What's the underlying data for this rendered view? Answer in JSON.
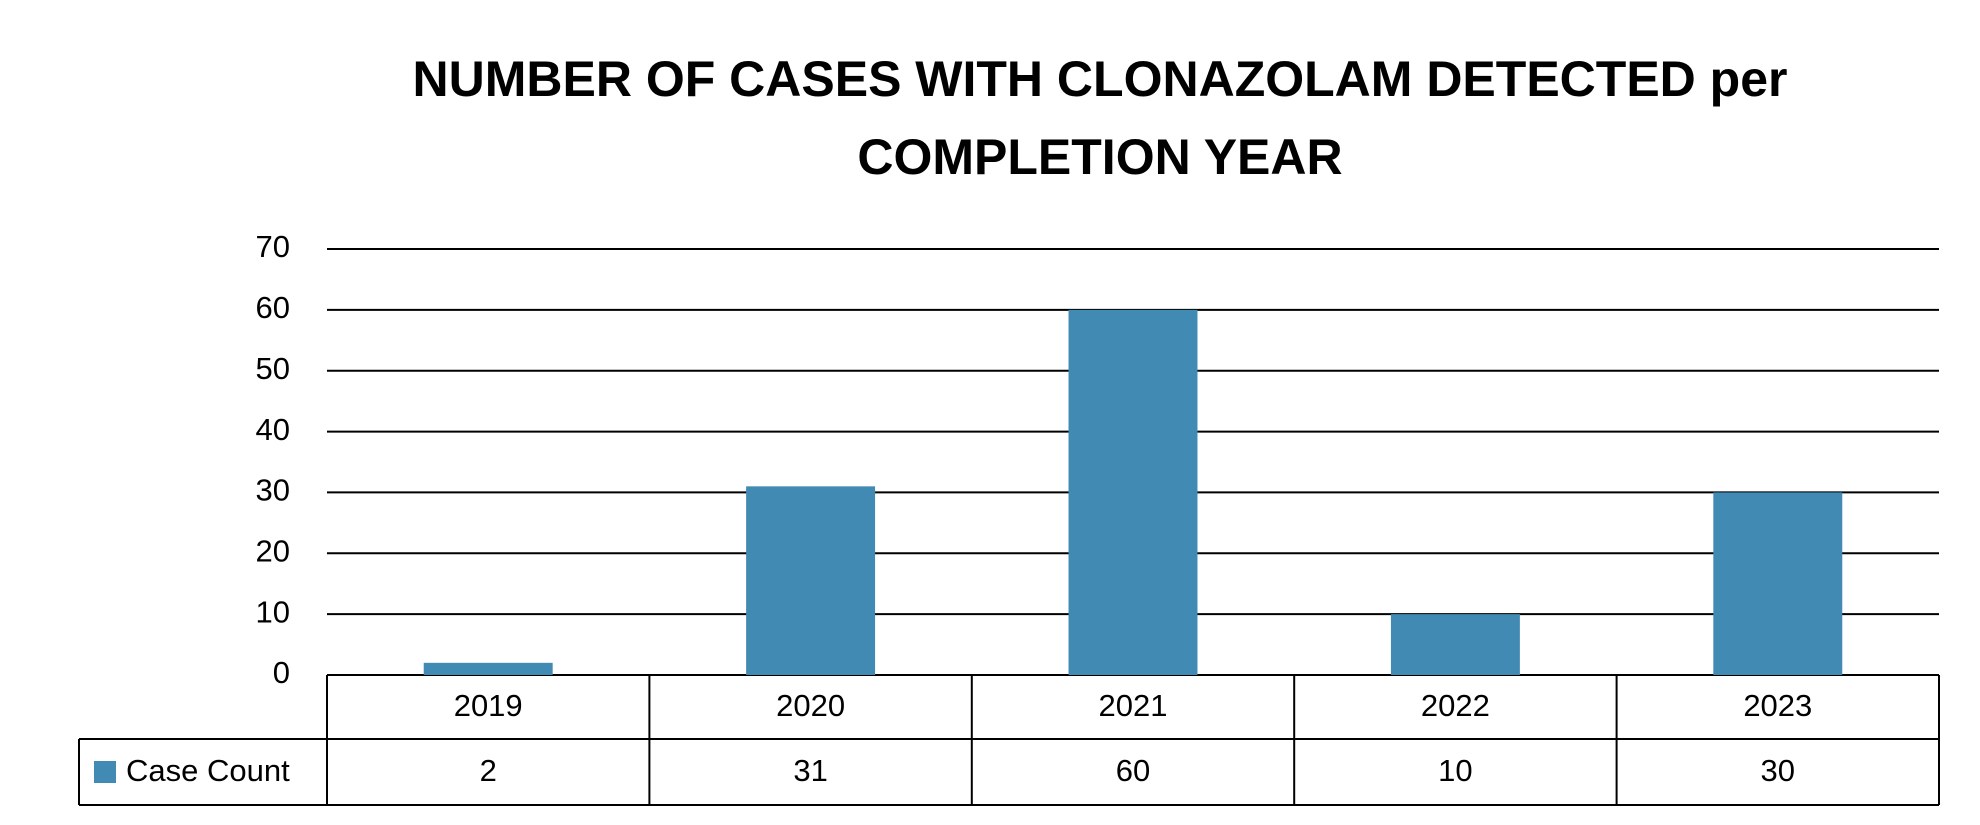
{
  "chart_data": {
    "type": "bar",
    "title": "NUMBER OF CASES WITH CLONAZOLAM DETECTED per COMPLETION YEAR",
    "categories": [
      "2019",
      "2020",
      "2021",
      "2022",
      "2023"
    ],
    "series": [
      {
        "name": "Case Count",
        "color": "#418ab3",
        "values": [
          2,
          31,
          60,
          10,
          30
        ]
      }
    ],
    "ylim": [
      0,
      70
    ],
    "yticks": [
      0,
      10,
      20,
      30,
      40,
      50,
      60,
      70
    ],
    "grid": true
  }
}
